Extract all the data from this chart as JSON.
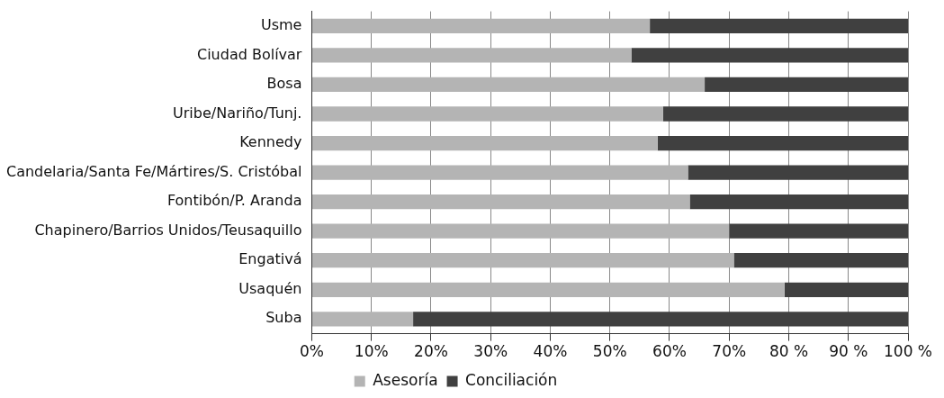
{
  "chart_data": {
    "type": "bar",
    "orientation": "horizontal",
    "stacked": true,
    "categories": [
      "Usme",
      "Ciudad Bolívar",
      "Bosa",
      "Uribe/Nariño/Tunj.",
      "Kennedy",
      "Candelaria/Santa Fe/Mártires/S. Cristóbal",
      "Fontibón/P. Aranda",
      "Chapinero/Barrios Unidos/Teusaquillo",
      "Engativá",
      "Usaquén",
      "Suba"
    ],
    "series": [
      {
        "name": "Asesoría",
        "color": "#b4b4b4",
        "values": [
          56.7,
          53.6,
          65.9,
          58.9,
          58.0,
          63.1,
          63.4,
          70.0,
          70.8,
          79.3,
          17.0
        ]
      },
      {
        "name": "Conciliación",
        "color": "#404040",
        "values": [
          43.3,
          46.4,
          34.1,
          41.1,
          42.0,
          36.9,
          36.6,
          30.0,
          29.2,
          20.7,
          83.0
        ]
      }
    ],
    "xlim": [
      0,
      100
    ],
    "xticks": [
      {
        "value": 0,
        "label": "0%"
      },
      {
        "value": 10,
        "label": "10%"
      },
      {
        "value": 20,
        "label": "20%"
      },
      {
        "value": 30,
        "label": "30%"
      },
      {
        "value": 40,
        "label": "40%"
      },
      {
        "value": 50,
        "label": "50%"
      },
      {
        "value": 60,
        "label": "60%"
      },
      {
        "value": 70,
        "label": "70%"
      },
      {
        "value": 80,
        "label": "80 %"
      },
      {
        "value": 90,
        "label": "90 %"
      },
      {
        "value": 100,
        "label": "100 %"
      }
    ],
    "grid": "x",
    "legend": "bottom"
  }
}
